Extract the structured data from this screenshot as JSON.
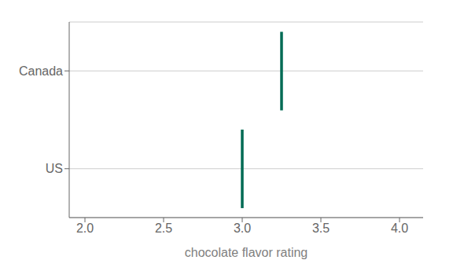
{
  "chart_data": {
    "type": "dot",
    "orientation": "horizontal",
    "categories": [
      "Canada",
      "US"
    ],
    "values": [
      3.25,
      3.0
    ],
    "color": "#006B54",
    "marker": "vline",
    "xlim": [
      1.9,
      4.15
    ],
    "xticks": [
      {
        "value": 2.0,
        "label": "2.0"
      },
      2.5,
      {
        "value": 3.0,
        "label": "3.0"
      },
      3.5,
      {
        "value": 4.0,
        "label": "4.0"
      }
    ],
    "xlabel": "chocolate flavor rating",
    "grid": "y"
  }
}
